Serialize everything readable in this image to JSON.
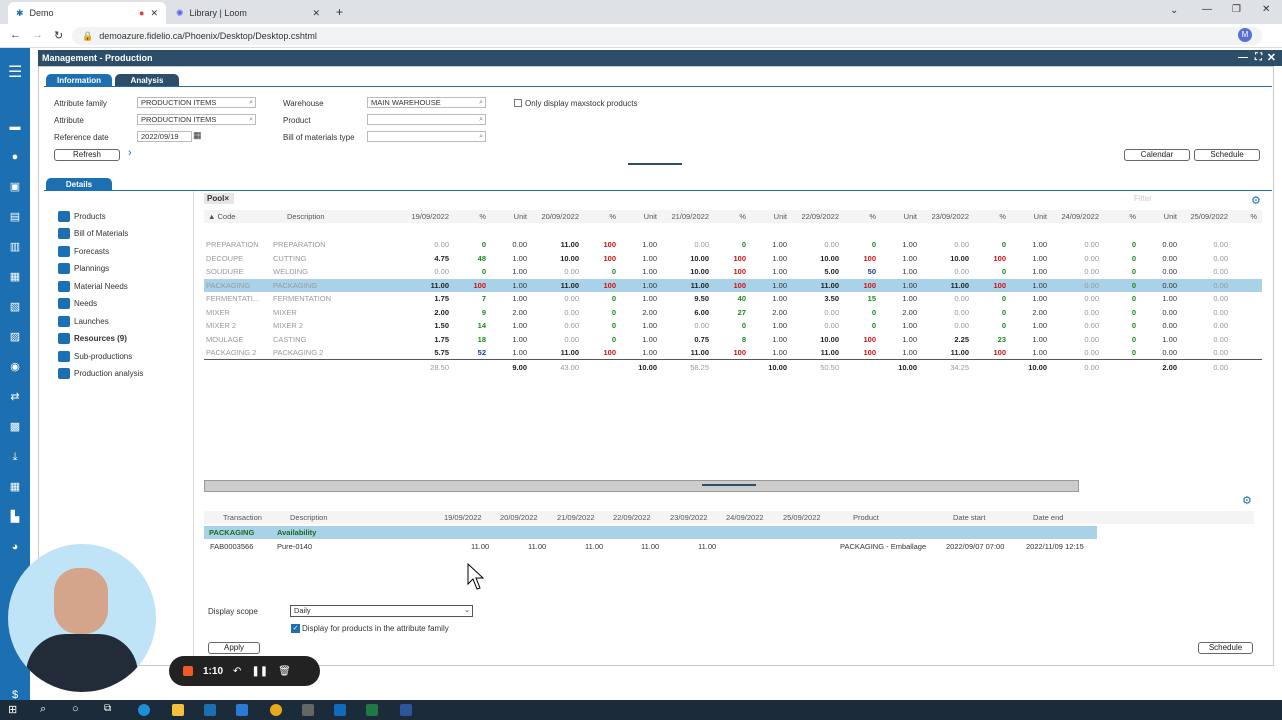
{
  "browser": {
    "tabs": [
      {
        "label": "Demo",
        "active": true
      },
      {
        "label": "Library | Loom",
        "active": false
      }
    ],
    "url": "demoazure.fidelio.ca/Phoenix/Desktop/Desktop.cshtml",
    "profile_initial": "M"
  },
  "app": {
    "title": "Management - Production",
    "top_tabs": [
      "Information",
      "Analysis"
    ],
    "filters": {
      "attribute_family_label": "Attribute family",
      "attribute_family_value": "PRODUCTION ITEMS",
      "attribute_label": "Attribute",
      "attribute_value": "PRODUCTION ITEMS",
      "reference_date_label": "Reference date",
      "reference_date_value": "2022/09/19",
      "warehouse_label": "Warehouse",
      "warehouse_value": "MAIN WAREHOUSE",
      "product_label": "Product",
      "bom_type_label": "Bill of materials type",
      "maxstock_label": "Only display maxstock products"
    },
    "buttons": {
      "refresh": "Refresh",
      "calendar": "Calendar",
      "schedule": "Schedule",
      "apply": "Apply",
      "schedule_bottom": "Schedule"
    },
    "details_tab": "Details",
    "nav_items": [
      "Products",
      "Bill of Materials",
      "Forecasts",
      "Plannings",
      "Material Needs",
      "Needs",
      "Launches",
      "Resources (9)",
      "Sub-productions",
      "Production analysis"
    ],
    "pool_tab": "Pool",
    "filter_placeholder": "Filter",
    "grid": {
      "headers": [
        "Code",
        "Description",
        "19/09/2022",
        "%",
        "Unit",
        "20/09/2022",
        "%",
        "Unit",
        "21/09/2022",
        "%",
        "Unit",
        "22/09/2022",
        "%",
        "Unit",
        "23/09/2022",
        "%",
        "Unit",
        "24/09/2022",
        "%",
        "Unit",
        "25/09/2022",
        "%"
      ],
      "rows": [
        {
          "code": "PREPARATION",
          "desc": "PREPARATION",
          "cells": [
            "0.00",
            "0",
            "0.00",
            "11.00",
            "100",
            "1.00",
            "0.00",
            "0",
            "1.00",
            "0.00",
            "0",
            "1.00",
            "0.00",
            "0",
            "1.00",
            "0.00",
            "0",
            "0.00",
            "0.00"
          ]
        },
        {
          "code": "DECOUPE",
          "desc": "CUTTING",
          "cells": [
            "4.75",
            "48",
            "1.00",
            "10.00",
            "100",
            "1.00",
            "10.00",
            "100",
            "1.00",
            "10.00",
            "100",
            "1.00",
            "10.00",
            "100",
            "1.00",
            "0.00",
            "0",
            "0.00",
            "0.00"
          ]
        },
        {
          "code": "SOUDURE",
          "desc": "WELDING",
          "cells": [
            "0.00",
            "0",
            "1.00",
            "0.00",
            "0",
            "1.00",
            "10.00",
            "100",
            "1.00",
            "5.00",
            "50",
            "1.00",
            "0.00",
            "0",
            "1.00",
            "0.00",
            "0",
            "0.00",
            "0.00"
          ]
        },
        {
          "code": "PACKAGING",
          "desc": "PACKAGING",
          "cells": [
            "11.00",
            "100",
            "1.00",
            "11.00",
            "100",
            "1.00",
            "11.00",
            "100",
            "1.00",
            "11.00",
            "100",
            "1.00",
            "11.00",
            "100",
            "1.00",
            "0.00",
            "0",
            "0.00",
            "0.00"
          ]
        },
        {
          "code": "FERMENTATI...",
          "desc": "FERMENTATION",
          "cells": [
            "1.75",
            "7",
            "1.00",
            "0.00",
            "0",
            "1.00",
            "9.50",
            "40",
            "1.00",
            "3.50",
            "15",
            "1.00",
            "0.00",
            "0",
            "1.00",
            "0.00",
            "0",
            "1.00",
            "0.00"
          ]
        },
        {
          "code": "MIXER",
          "desc": "MIXER",
          "cells": [
            "2.00",
            "9",
            "2.00",
            "0.00",
            "0",
            "2.00",
            "6.00",
            "27",
            "2.00",
            "0.00",
            "0",
            "2.00",
            "0.00",
            "0",
            "2.00",
            "0.00",
            "0",
            "0.00",
            "0.00"
          ]
        },
        {
          "code": "MIXER 2",
          "desc": "MIXER 2",
          "cells": [
            "1.50",
            "14",
            "1.00",
            "0.00",
            "0",
            "1.00",
            "0.00",
            "0",
            "1.00",
            "0.00",
            "0",
            "1.00",
            "0.00",
            "0",
            "1.00",
            "0.00",
            "0",
            "0.00",
            "0.00"
          ]
        },
        {
          "code": "MOULAGE",
          "desc": "CASTING",
          "cells": [
            "1.75",
            "18",
            "1.00",
            "0.00",
            "0",
            "1.00",
            "0.75",
            "8",
            "1.00",
            "10.00",
            "100",
            "1.00",
            "2.25",
            "23",
            "1.00",
            "0.00",
            "0",
            "1.00",
            "0.00"
          ]
        },
        {
          "code": "PACKAGING 2",
          "desc": "PACKAGING 2",
          "cells": [
            "5.75",
            "52",
            "1.00",
            "11.00",
            "100",
            "1.00",
            "11.00",
            "100",
            "1.00",
            "11.00",
            "100",
            "1.00",
            "11.00",
            "100",
            "1.00",
            "0.00",
            "0",
            "0.00",
            "0.00"
          ]
        }
      ],
      "totals": [
        "28.50",
        "",
        "9.00",
        "43.00",
        "",
        "10.00",
        "58.25",
        "",
        "10.00",
        "50.50",
        "",
        "10.00",
        "34.25",
        "",
        "10.00",
        "0.00",
        "",
        "2.00",
        "0.00"
      ]
    },
    "bottom_grid": {
      "headers": [
        "Transaction",
        "Description",
        "19/09/2022",
        "20/09/2022",
        "21/09/2022",
        "22/09/2022",
        "23/09/2022",
        "24/09/2022",
        "25/09/2022",
        "Product",
        "Date start",
        "Date end"
      ],
      "group_code": "PACKAGING",
      "group_label": "Availability",
      "row": {
        "transaction": "FAB0003566",
        "description": "Pure-0140",
        "values": [
          "11.00",
          "11.00",
          "11.00",
          "11.00",
          "11.00"
        ],
        "product": "PACKAGING - Emballage",
        "date_start": "2022/09/07 07:00",
        "date_end": "2022/11/09 12:15"
      }
    },
    "display_scope_label": "Display scope",
    "display_scope_value": "Daily",
    "display_products_label": "Display for products in the attribute family"
  },
  "recorder": {
    "time": "1:10"
  },
  "colors": {
    "accent": "#1c6fb0",
    "title_bar": "#2c4e69",
    "selected_row": "#a9d2e8",
    "green": "#1a8a1a",
    "red": "#d01010"
  }
}
